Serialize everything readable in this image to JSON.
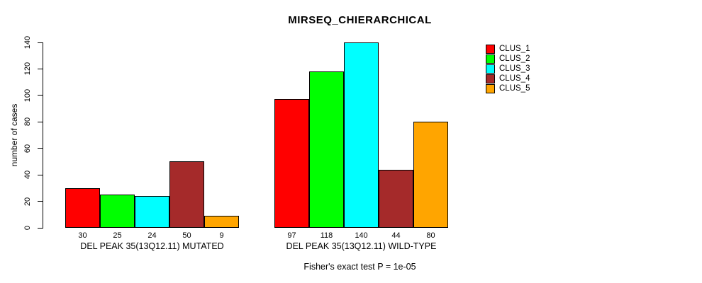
{
  "chart_data": {
    "type": "bar",
    "title": "MIRSEQ_CHIERARCHICAL",
    "ylabel": "number of cases",
    "ylim": [
      0,
      140
    ],
    "yticks": [
      0,
      20,
      40,
      60,
      80,
      100,
      120,
      140
    ],
    "grid": false,
    "legend_position": "right-inside",
    "legend": [
      {
        "label": "CLUS_1",
        "color": "#FF0000"
      },
      {
        "label": "CLUS_2",
        "color": "#00FF00"
      },
      {
        "label": "CLUS_3",
        "color": "#00FFFF"
      },
      {
        "label": "CLUS_4",
        "color": "#A52A2A"
      },
      {
        "label": "CLUS_5",
        "color": "#FFA500"
      }
    ],
    "groups": [
      {
        "label": "DEL PEAK 35(13Q12.11) MUTATED",
        "values": [
          30,
          25,
          24,
          50,
          9
        ]
      },
      {
        "label": "DEL PEAK 35(13Q12.11) WILD-TYPE",
        "values": [
          97,
          118,
          140,
          44,
          80
        ]
      }
    ],
    "bar_value_labels_shown": true,
    "footnote": "Fisher's exact test P = 1e-05",
    "bar_border_color": "#000000",
    "background_color": "#FFFFFF"
  }
}
